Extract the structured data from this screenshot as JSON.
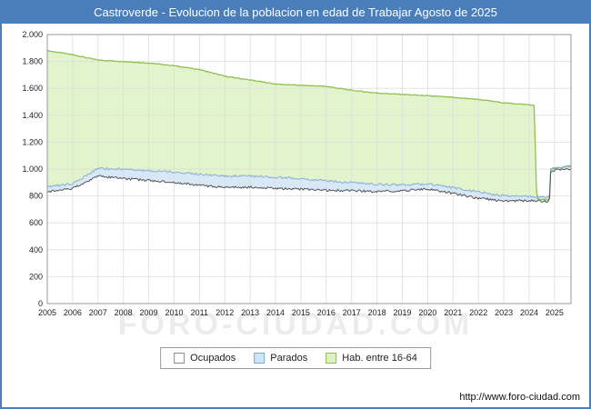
{
  "title": "Castroverde - Evolucion de la poblacion en edad de Trabajar Agosto de 2025",
  "watermark": "FORO-CIUDAD.COM",
  "footer": {
    "url": "http://www.foro-ciudad.com"
  },
  "legend": [
    {
      "label": "Ocupados",
      "color": "#ffffff",
      "border": "#8a8a8a"
    },
    {
      "label": "Parados",
      "color": "#d2e5f6",
      "border": "#7aa9d8"
    },
    {
      "label": "Hab. entre 16-64",
      "color": "#ddf1c3",
      "border": "#8fbc5a"
    }
  ],
  "colors": {
    "title_bar": "#4a7ebb",
    "grid": "#dddddd",
    "plot_border": "#999999",
    "hab_fill": "#e2f4cb",
    "hab_line": "#90c050",
    "parados_fill": "#d8e8f6",
    "parados_line": "#85aed4",
    "ocupados_fill": "#ffffff",
    "ocupados_line": "#555555"
  },
  "chart_data": {
    "type": "area",
    "title": "Castroverde - Evolucion de la poblacion en edad de Trabajar Agosto de 2025",
    "xlabel": "",
    "ylabel": "",
    "ylim": [
      0,
      2000
    ],
    "grid": true,
    "legend_position": "bottom",
    "stacked_note": "values are the visible band-top levels read off the y-axis (Ocupados line, Parados band top, Hab. 16-64 top)",
    "y_ticks": [
      "0",
      "200",
      "400",
      "600",
      "800",
      "1.000",
      "1.200",
      "1.400",
      "1.600",
      "1.800",
      "2.000"
    ],
    "x_label_years": [
      "2005",
      "2006",
      "2007",
      "2008",
      "2009",
      "2010",
      "2011",
      "2012",
      "2013",
      "2014",
      "2015",
      "2016",
      "2017",
      "2018",
      "2019",
      "2020",
      "2021",
      "2022",
      "2023",
      "2024",
      "2025"
    ],
    "x": [
      2005,
      2006,
      2007,
      2008,
      2009,
      2010,
      2011,
      2012,
      2013,
      2014,
      2015,
      2016,
      2017,
      2018,
      2019,
      2020,
      2021,
      2022,
      2023,
      2024,
      2024.2,
      2024.3,
      2024.8,
      2024.85,
      2025,
      2025.65
    ],
    "series": [
      {
        "name": "Hab. entre 16-64",
        "values": [
          1880,
          1850,
          1810,
          1800,
          1788,
          1768,
          1740,
          1690,
          1662,
          1632,
          1622,
          1615,
          1585,
          1565,
          1555,
          1545,
          1532,
          1518,
          1492,
          1478,
          1472,
          775,
          770,
          1000,
          1005,
          1025
        ],
        "fill": "#e2f4cb",
        "line": "#90c050"
      },
      {
        "name": "Parados (tope de banda)",
        "values": [
          868,
          890,
          1005,
          1000,
          990,
          978,
          962,
          950,
          948,
          940,
          930,
          912,
          900,
          886,
          880,
          890,
          862,
          830,
          800,
          798,
          795,
          795,
          790,
          1000,
          1008,
          1022
        ],
        "fill": "#d8e8f6",
        "line": "#85aed4"
      },
      {
        "name": "Ocupados",
        "values": [
          832,
          855,
          948,
          930,
          915,
          900,
          880,
          862,
          866,
          856,
          850,
          842,
          840,
          832,
          840,
          850,
          820,
          782,
          762,
          766,
          765,
          765,
          760,
          980,
          992,
          1002
        ],
        "fill": "#ffffff",
        "line": "#555555"
      }
    ]
  }
}
